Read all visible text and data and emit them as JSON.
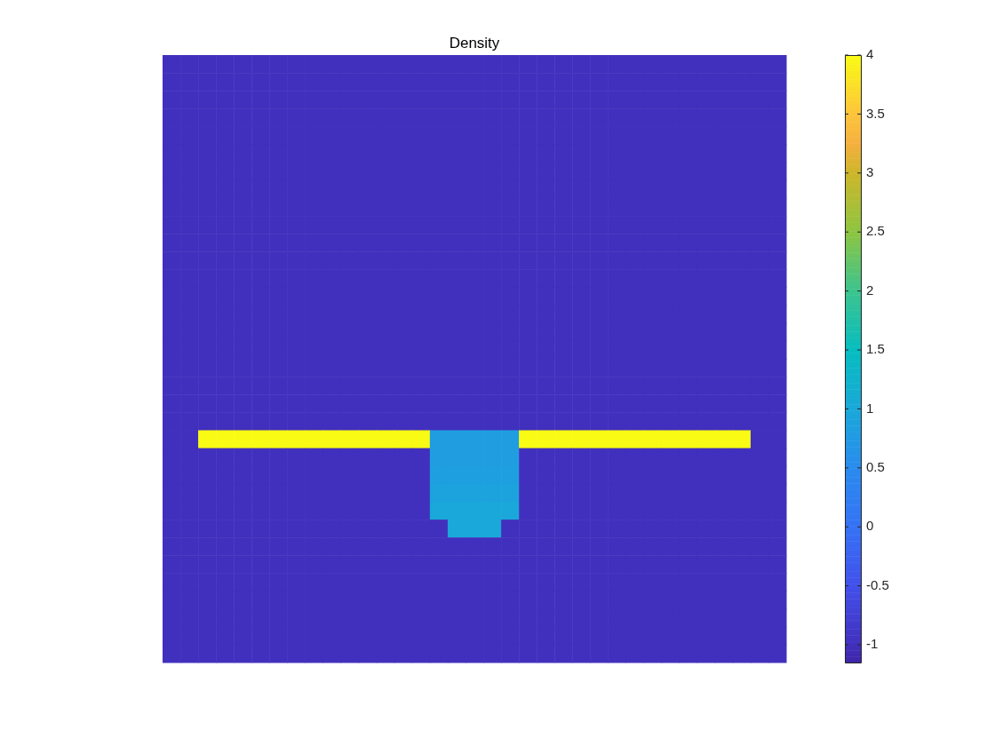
{
  "chart_data": {
    "type": "heatmap",
    "title": "Density",
    "tick_labels": false,
    "categories": [
      null,
      null,
      null,
      null,
      null,
      null,
      null,
      null,
      null,
      null,
      null,
      null,
      null,
      null,
      null,
      null,
      null,
      null,
      null,
      null,
      null,
      null,
      null,
      null,
      null,
      null,
      null,
      null,
      null,
      null,
      null,
      null,
      null,
      null,
      null
    ],
    "y_categories": [
      null,
      null,
      null,
      null,
      null,
      null,
      null,
      null,
      null,
      null,
      null,
      null,
      null,
      null,
      null,
      null,
      null,
      null,
      null,
      null,
      null,
      null,
      null,
      null,
      null,
      null,
      null,
      null,
      null,
      null,
      null,
      null,
      null,
      null
    ],
    "clim": [
      -1.15,
      4
    ],
    "cticks": [
      -1,
      -0.5,
      0,
      0.5,
      1,
      1.5,
      2,
      2.5,
      3,
      3.5,
      4
    ],
    "cells": [
      [
        -1,
        -1,
        -1,
        -1,
        -1,
        -1,
        -1,
        -1,
        -1,
        -1,
        -1,
        -1,
        -1,
        -1,
        -1,
        -1,
        -1,
        -1,
        -1,
        -1,
        -1,
        -1,
        -1,
        -1,
        -1,
        -1,
        -1,
        -1,
        -1,
        -1,
        -1,
        -1,
        -1,
        -1,
        -1
      ],
      [
        -1,
        -1,
        -1,
        -1,
        -1,
        -1,
        -1,
        -1,
        -1,
        -1,
        -1,
        -1,
        -1,
        -1,
        -1,
        -1,
        -1,
        -1,
        -1,
        -1,
        -1,
        -1,
        -1,
        -1,
        -1,
        -1,
        -1,
        -1,
        -1,
        -1,
        -1,
        -1,
        -1,
        -1,
        -1
      ],
      [
        -1,
        -1,
        -1,
        -1,
        -1,
        -1,
        -1,
        -1,
        -1,
        -1,
        -1,
        -1,
        -1,
        -1,
        -1,
        -1,
        -1,
        -1,
        -1,
        -1,
        -1,
        -1,
        -1,
        -1,
        -1,
        -1,
        -1,
        -1,
        -1,
        -1,
        -1,
        -1,
        -1,
        -1,
        -1
      ],
      [
        -1,
        -1,
        -1,
        -1,
        -1,
        -1,
        -1,
        -1,
        -1,
        -1,
        -1,
        -1,
        -1,
        -1,
        -1,
        -1,
        -1,
        -1,
        -1,
        -1,
        -1,
        -1,
        -1,
        -1,
        -1,
        -1,
        -1,
        -1,
        -1,
        -1,
        -1,
        -1,
        -1,
        -1,
        -1
      ],
      [
        -1,
        -1,
        -1,
        -1,
        -1,
        -1,
        -1,
        -1,
        -1,
        -1,
        -1,
        -1,
        -1,
        -1,
        -1,
        -1,
        -1,
        -1,
        -1,
        -1,
        -1,
        -1,
        -1,
        -1,
        -1,
        -1,
        -1,
        -1,
        -1,
        -1,
        -1,
        -1,
        -1,
        -1,
        -1
      ],
      [
        -1,
        -1,
        -1,
        -1,
        -1,
        -1,
        -1,
        -1,
        -1,
        -1,
        -1,
        -1,
        -1,
        -1,
        -1,
        -1,
        -1,
        -1,
        -1,
        -1,
        -1,
        -1,
        -1,
        -1,
        -1,
        -1,
        -1,
        -1,
        -1,
        -1,
        -1,
        -1,
        -1,
        -1,
        -1
      ],
      [
        -1,
        -1,
        -1,
        -1,
        -1,
        -1,
        -1,
        -1,
        -1,
        -1,
        -1,
        -1,
        -1,
        -1,
        -1,
        -1,
        -1,
        -1,
        -1,
        -1,
        -1,
        -1,
        -1,
        -1,
        -1,
        -1,
        -1,
        -1,
        -1,
        -1,
        -1,
        -1,
        -1,
        -1,
        -1
      ],
      [
        -1,
        -1,
        -1,
        -1,
        -1,
        -1,
        -1,
        -1,
        -1,
        -1,
        -1,
        -1,
        -1,
        -1,
        -1,
        -1,
        -1,
        -1,
        -1,
        -1,
        -1,
        -1,
        -1,
        -1,
        -1,
        -1,
        -1,
        -1,
        -1,
        -1,
        -1,
        -1,
        -1,
        -1,
        -1
      ],
      [
        -1,
        -1,
        -1,
        -1,
        -1,
        -1,
        -1,
        -1,
        -1,
        -1,
        -1,
        -1,
        -1,
        -1,
        -1,
        -1,
        -1,
        -1,
        -1,
        -1,
        -1,
        -1,
        -1,
        -1,
        -1,
        -1,
        -1,
        -1,
        -1,
        -1,
        -1,
        -1,
        -1,
        -1,
        -1
      ],
      [
        -1,
        -1,
        -1,
        -1,
        -1,
        -1,
        -1,
        -1,
        -1,
        -1,
        -1,
        -1,
        -1,
        -1,
        -1,
        -1,
        -1,
        -1,
        -1,
        -1,
        -1,
        -1,
        -1,
        -1,
        -1,
        -1,
        -1,
        -1,
        -1,
        -1,
        -1,
        -1,
        -1,
        -1,
        -1
      ],
      [
        -1,
        -1,
        -1,
        -1,
        -1,
        -1,
        -1,
        -1,
        -1,
        -1,
        -1,
        -1,
        -1,
        -1,
        -1,
        -1,
        -1,
        -1,
        -1,
        -1,
        -1,
        -1,
        -1,
        -1,
        -1,
        -1,
        -1,
        -1,
        -1,
        -1,
        -1,
        -1,
        -1,
        -1,
        -1
      ],
      [
        -1,
        -1,
        -1,
        -1,
        -1,
        -1,
        -1,
        -1,
        -1,
        -1,
        -1,
        -1,
        -1,
        -1,
        -1,
        -1,
        -1,
        -1,
        -1,
        -1,
        -1,
        -1,
        -1,
        -1,
        -1,
        -1,
        -1,
        -1,
        -1,
        -1,
        -1,
        -1,
        -1,
        -1,
        -1
      ],
      [
        -1,
        -1,
        -1,
        -1,
        -1,
        -1,
        -1,
        -1,
        -1,
        -1,
        -1,
        -1,
        -1,
        -1,
        -1,
        -1,
        -1,
        -1,
        -1,
        -1,
        -1,
        -1,
        -1,
        -1,
        -1,
        -1,
        -1,
        -1,
        -1,
        -1,
        -1,
        -1,
        -1,
        -1,
        -1
      ],
      [
        -1,
        -1,
        -1,
        -1,
        -1,
        -1,
        -1,
        -1,
        -1,
        -1,
        -1,
        -1,
        -1,
        -1,
        -1,
        -1,
        -1,
        -1,
        -1,
        -1,
        -1,
        -1,
        -1,
        -1,
        -1,
        -1,
        -1,
        -1,
        -1,
        -1,
        -1,
        -1,
        -1,
        -1,
        -1
      ],
      [
        -1,
        -1,
        -1,
        -1,
        -1,
        -1,
        -1,
        -1,
        -1,
        -1,
        -1,
        -1,
        -1,
        -1,
        -1,
        -1,
        -1,
        -1,
        -1,
        -1,
        -1,
        -1,
        -1,
        -1,
        -1,
        -1,
        -1,
        -1,
        -1,
        -1,
        -1,
        -1,
        -1,
        -1,
        -1
      ],
      [
        -1,
        -1,
        -1,
        -1,
        -1,
        -1,
        -1,
        -1,
        -1,
        -1,
        -1,
        -1,
        -1,
        -1,
        -1,
        -1,
        -1,
        -1,
        -1,
        -1,
        -1,
        -1,
        -1,
        -1,
        -1,
        -1,
        -1,
        -1,
        -1,
        -1,
        -1,
        -1,
        -1,
        -1,
        -1
      ],
      [
        -1,
        -1,
        -1,
        -1,
        -1,
        -1,
        -1,
        -1,
        -1,
        -1,
        -1,
        -1,
        -1,
        -1,
        -1,
        -1,
        -1,
        -1,
        -1,
        -1,
        -1,
        -1,
        -1,
        -1,
        -1,
        -1,
        -1,
        -1,
        -1,
        -1,
        -1,
        -1,
        -1,
        -1,
        -1
      ],
      [
        -1,
        -1,
        -1,
        -1,
        -1,
        -1,
        -1,
        -1,
        -1,
        -1,
        -1,
        -1,
        -1,
        -1,
        -1,
        -1,
        -1,
        -1,
        -1,
        -1,
        -1,
        -1,
        -1,
        -1,
        -1,
        -1,
        -1,
        -1,
        -1,
        -1,
        -1,
        -1,
        -1,
        -1,
        -1
      ],
      [
        -1,
        -1,
        -1,
        -1,
        -1,
        -1,
        -1,
        -1,
        -1,
        -1,
        -1,
        -1,
        -1,
        -1,
        -1,
        -1,
        -1,
        -1,
        -1,
        -1,
        -1,
        -1,
        -1,
        -1,
        -1,
        -1,
        -1,
        -1,
        -1,
        -1,
        -1,
        -1,
        -1,
        -1,
        -1
      ],
      [
        -1,
        -1,
        -1,
        -1,
        -1,
        -1,
        -1,
        -1,
        -1,
        -1,
        -1,
        -1,
        -1,
        -1,
        -1,
        -1,
        -1,
        -1,
        -1,
        -1,
        -1,
        -1,
        -1,
        -1,
        -1,
        -1,
        -1,
        -1,
        -1,
        -1,
        -1,
        -1,
        -1,
        -1,
        -1
      ],
      [
        -1,
        -1,
        -1,
        -1,
        -1,
        -1,
        -1,
        -1,
        -1,
        -1,
        -1,
        -1,
        -1,
        -1,
        -1,
        -1,
        -1,
        -1,
        -1,
        -1,
        -1,
        -1,
        -1,
        -1,
        -1,
        -1,
        -1,
        -1,
        -1,
        -1,
        -1,
        -1,
        -1,
        -1,
        -1
      ],
      [
        -1,
        -1,
        4,
        4,
        4,
        4,
        4,
        4,
        4,
        4,
        4,
        4,
        4,
        4,
        4,
        0.8,
        0.8,
        0.8,
        0.8,
        0.8,
        4,
        4,
        4,
        4,
        4,
        4,
        4,
        4,
        4,
        4,
        4,
        4,
        4,
        -1,
        -1
      ],
      [
        -1,
        -1,
        -1,
        -1,
        -1,
        -1,
        -1,
        -1,
        -1,
        -1,
        -1,
        -1,
        -1,
        -1,
        -1,
        0.8,
        0.8,
        0.8,
        0.8,
        0.8,
        -1,
        -1,
        -1,
        -1,
        -1,
        -1,
        -1,
        -1,
        -1,
        -1,
        -1,
        -1,
        -1,
        -1,
        -1
      ],
      [
        -1,
        -1,
        -1,
        -1,
        -1,
        -1,
        -1,
        -1,
        -1,
        -1,
        -1,
        -1,
        -1,
        -1,
        -1,
        0.85,
        0.85,
        0.85,
        0.85,
        0.85,
        -1,
        -1,
        -1,
        -1,
        -1,
        -1,
        -1,
        -1,
        -1,
        -1,
        -1,
        -1,
        -1,
        -1,
        -1
      ],
      [
        -1,
        -1,
        -1,
        -1,
        -1,
        -1,
        -1,
        -1,
        -1,
        -1,
        -1,
        -1,
        -1,
        -1,
        -1,
        0.9,
        0.9,
        0.9,
        0.9,
        0.9,
        -1,
        -1,
        -1,
        -1,
        -1,
        -1,
        -1,
        -1,
        -1,
        -1,
        -1,
        -1,
        -1,
        -1,
        -1
      ],
      [
        -1,
        -1,
        -1,
        -1,
        -1,
        -1,
        -1,
        -1,
        -1,
        -1,
        -1,
        -1,
        -1,
        -1,
        -1,
        1,
        1,
        1,
        1,
        1,
        -1,
        -1,
        -1,
        -1,
        -1,
        -1,
        -1,
        -1,
        -1,
        -1,
        -1,
        -1,
        -1,
        -1,
        -1
      ],
      [
        -1,
        -1,
        -1,
        -1,
        -1,
        -1,
        -1,
        -1,
        -1,
        -1,
        -1,
        -1,
        -1,
        -1,
        -1,
        -1,
        1,
        1,
        1,
        -1,
        -1,
        -1,
        -1,
        -1,
        -1,
        -1,
        -1,
        -1,
        -1,
        -1,
        -1,
        -1,
        -1,
        -1,
        -1
      ],
      [
        -1,
        -1,
        -1,
        -1,
        -1,
        -1,
        -1,
        -1,
        -1,
        -1,
        -1,
        -1,
        -1,
        -1,
        -1,
        -1,
        -1,
        -1,
        -1,
        -1,
        -1,
        -1,
        -1,
        -1,
        -1,
        -1,
        -1,
        -1,
        -1,
        -1,
        -1,
        -1,
        -1,
        -1,
        -1
      ],
      [
        -1,
        -1,
        -1,
        -1,
        -1,
        -1,
        -1,
        -1,
        -1,
        -1,
        -1,
        -1,
        -1,
        -1,
        -1,
        -1,
        -1,
        -1,
        -1,
        -1,
        -1,
        -1,
        -1,
        -1,
        -1,
        -1,
        -1,
        -1,
        -1,
        -1,
        -1,
        -1,
        -1,
        -1,
        -1
      ],
      [
        -1,
        -1,
        -1,
        -1,
        -1,
        -1,
        -1,
        -1,
        -1,
        -1,
        -1,
        -1,
        -1,
        -1,
        -1,
        -1,
        -1,
        -1,
        -1,
        -1,
        -1,
        -1,
        -1,
        -1,
        -1,
        -1,
        -1,
        -1,
        -1,
        -1,
        -1,
        -1,
        -1,
        -1,
        -1
      ],
      [
        -1,
        -1,
        -1,
        -1,
        -1,
        -1,
        -1,
        -1,
        -1,
        -1,
        -1,
        -1,
        -1,
        -1,
        -1,
        -1,
        -1,
        -1,
        -1,
        -1,
        -1,
        -1,
        -1,
        -1,
        -1,
        -1,
        -1,
        -1,
        -1,
        -1,
        -1,
        -1,
        -1,
        -1,
        -1
      ],
      [
        -1,
        -1,
        -1,
        -1,
        -1,
        -1,
        -1,
        -1,
        -1,
        -1,
        -1,
        -1,
        -1,
        -1,
        -1,
        -1,
        -1,
        -1,
        -1,
        -1,
        -1,
        -1,
        -1,
        -1,
        -1,
        -1,
        -1,
        -1,
        -1,
        -1,
        -1,
        -1,
        -1,
        -1,
        -1
      ],
      [
        -1,
        -1,
        -1,
        -1,
        -1,
        -1,
        -1,
        -1,
        -1,
        -1,
        -1,
        -1,
        -1,
        -1,
        -1,
        -1,
        -1,
        -1,
        -1,
        -1,
        -1,
        -1,
        -1,
        -1,
        -1,
        -1,
        -1,
        -1,
        -1,
        -1,
        -1,
        -1,
        -1,
        -1,
        -1
      ],
      [
        -1,
        -1,
        -1,
        -1,
        -1,
        -1,
        -1,
        -1,
        -1,
        -1,
        -1,
        -1,
        -1,
        -1,
        -1,
        -1,
        -1,
        -1,
        -1,
        -1,
        -1,
        -1,
        -1,
        -1,
        -1,
        -1,
        -1,
        -1,
        -1,
        -1,
        -1,
        -1,
        -1,
        -1,
        -1
      ]
    ]
  }
}
